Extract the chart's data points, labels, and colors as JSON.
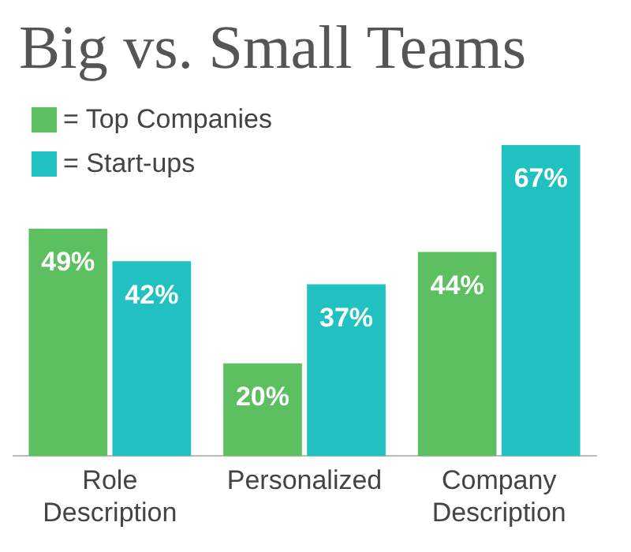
{
  "chart_data": {
    "type": "bar",
    "title": "Big vs. Small Teams",
    "categories": [
      "Role Description",
      "Personalized",
      "Company Description"
    ],
    "series": [
      {
        "name": "= Top Companies",
        "color": "#5cbf60",
        "values": [
          49,
          20,
          44
        ],
        "value_labels": [
          "49%",
          "20%",
          "44%"
        ]
      },
      {
        "name": "= Start-ups",
        "color": "#22c1c1",
        "values": [
          42,
          37,
          67
        ],
        "value_labels": [
          "42%",
          "37%",
          "67%"
        ]
      }
    ],
    "grid": false,
    "legend": "top left",
    "tick_labels": "x"
  }
}
